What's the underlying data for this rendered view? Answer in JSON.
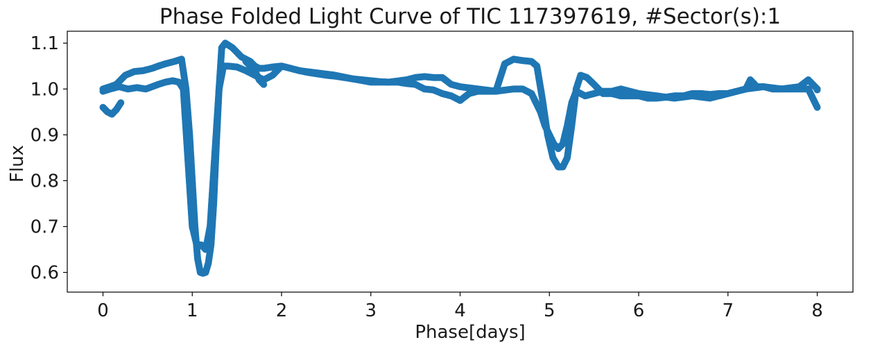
{
  "chart_data": {
    "type": "scatter",
    "title": "Phase Folded Light Curve of TIC 117397619, #Sector(s):1",
    "xlabel": "Phase[days]",
    "ylabel": "Flux",
    "xlim": [
      -0.4,
      8.4
    ],
    "ylim": [
      0.557,
      1.126
    ],
    "x_ticks": [
      0,
      1,
      2,
      3,
      4,
      5,
      6,
      7,
      8
    ],
    "x_tick_labels": [
      "0",
      "1",
      "2",
      "3",
      "4",
      "5",
      "6",
      "7",
      "8"
    ],
    "y_ticks": [
      0.6,
      0.7,
      0.8,
      0.9,
      1.0,
      1.1
    ],
    "y_tick_labels": [
      "0.6",
      "0.7",
      "0.8",
      "0.9",
      "1.0",
      "1.1"
    ],
    "grid": false,
    "legend": "none",
    "marker_color": "#1f77b4",
    "series": [
      {
        "x": [
          0.0,
          0.08,
          0.15,
          0.25,
          0.35,
          0.45,
          0.55,
          0.62,
          0.7,
          0.8,
          0.88,
          0.93,
          0.97,
          1.0,
          1.03,
          1.06,
          1.09,
          1.12,
          1.15,
          1.18,
          1.21,
          1.24,
          1.27,
          1.3,
          1.33,
          1.37,
          1.45,
          1.55,
          1.65,
          1.7,
          1.75,
          1.8,
          1.9,
          2.0,
          2.1,
          2.2,
          2.3,
          2.4,
          2.5,
          2.6,
          2.7,
          2.8,
          2.9,
          3.0,
          3.1,
          3.2,
          3.3,
          3.4,
          3.5,
          3.6,
          3.7,
          3.8,
          3.9,
          4.0,
          4.1,
          4.2,
          4.3,
          4.4,
          4.5,
          4.6,
          4.7,
          4.8,
          4.86,
          4.92,
          4.98,
          5.04,
          5.1,
          5.15,
          5.2,
          5.25,
          5.3,
          5.35,
          5.42,
          5.5,
          5.6,
          5.7,
          5.8,
          5.9,
          6.0,
          6.1,
          6.2,
          6.3,
          6.4,
          6.5,
          6.6,
          6.7,
          6.8,
          6.9,
          7.0,
          7.1,
          7.2,
          7.3,
          7.4,
          7.5,
          7.6,
          7.7,
          7.8,
          7.9,
          8.0
        ],
        "y": [
          1.0,
          1.005,
          1.01,
          1.03,
          1.038,
          1.04,
          1.045,
          1.05,
          1.055,
          1.06,
          1.065,
          1.0,
          0.9,
          0.8,
          0.7,
          0.63,
          0.6,
          0.598,
          0.6,
          0.62,
          0.66,
          0.75,
          0.88,
          1.0,
          1.09,
          1.1,
          1.09,
          1.07,
          1.06,
          1.05,
          1.045,
          1.045,
          1.048,
          1.05,
          1.045,
          1.04,
          1.036,
          1.033,
          1.03,
          1.028,
          1.025,
          1.022,
          1.02,
          1.018,
          1.016,
          1.015,
          1.015,
          1.012,
          1.01,
          1.0,
          0.998,
          0.99,
          0.985,
          0.975,
          0.99,
          0.995,
          0.995,
          0.995,
          1.055,
          1.065,
          1.062,
          1.06,
          1.05,
          0.98,
          0.9,
          0.85,
          0.83,
          0.83,
          0.85,
          0.92,
          1.0,
          1.03,
          1.025,
          1.01,
          0.99,
          0.99,
          0.985,
          0.985,
          0.985,
          0.98,
          0.98,
          0.982,
          0.985,
          0.985,
          0.99,
          0.99,
          0.988,
          0.99,
          0.99,
          0.995,
          1.0,
          1.005,
          1.005,
          1.0,
          1.0,
          1.0,
          1.0,
          1.0,
          0.96
        ]
      },
      {
        "x": [
          0.0,
          0.08,
          0.18,
          0.28,
          0.38,
          0.48,
          0.55,
          0.62,
          0.7,
          0.78,
          0.85,
          0.9,
          0.95,
          1.0,
          1.05,
          1.1,
          1.15,
          1.2,
          1.25,
          1.3,
          1.35,
          1.4,
          1.5,
          1.6,
          1.7,
          1.8,
          1.9,
          2.0,
          2.2,
          2.4,
          2.6,
          2.8,
          3.0,
          3.2,
          3.4,
          3.5,
          3.6,
          3.7,
          3.8,
          3.9,
          4.0,
          4.2,
          4.4,
          4.6,
          4.7,
          4.8,
          4.9,
          4.95,
          5.0,
          5.05,
          5.1,
          5.15,
          5.2,
          5.25,
          5.3,
          5.35,
          5.4,
          5.5,
          5.6,
          5.7,
          5.8,
          6.0,
          6.2,
          6.4,
          6.6,
          6.8,
          7.0,
          7.2,
          7.4,
          7.6,
          7.8,
          7.9,
          8.0
        ],
        "y": [
          0.995,
          1.0,
          1.005,
          1.0,
          1.003,
          1.0,
          1.005,
          1.01,
          1.015,
          1.018,
          1.015,
          1.0,
          0.85,
          0.7,
          0.66,
          0.66,
          0.65,
          0.7,
          0.85,
          1.0,
          1.05,
          1.05,
          1.048,
          1.04,
          1.03,
          1.02,
          1.03,
          1.05,
          1.04,
          1.035,
          1.03,
          1.022,
          1.015,
          1.015,
          1.02,
          1.025,
          1.027,
          1.025,
          1.025,
          1.01,
          1.005,
          1.0,
          0.995,
          1.0,
          1.0,
          0.99,
          0.95,
          0.92,
          0.9,
          0.88,
          0.87,
          0.88,
          0.92,
          0.97,
          0.995,
          0.99,
          0.985,
          0.99,
          0.995,
          0.995,
          1.0,
          0.99,
          0.985,
          0.98,
          0.985,
          0.98,
          0.99,
          1.0,
          1.005,
          1.0,
          1.005,
          1.02,
          1.0
        ]
      },
      {
        "x": [
          0.0,
          0.05,
          0.1,
          0.15,
          0.2,
          1.6,
          1.65,
          1.7,
          1.75,
          1.8,
          7.2,
          7.25,
          7.3,
          8.0
        ],
        "y": [
          0.96,
          0.95,
          0.945,
          0.955,
          0.97,
          1.06,
          1.05,
          1.04,
          1.02,
          1.01,
          1.0,
          1.02,
          1.01,
          0.998
        ]
      }
    ]
  }
}
